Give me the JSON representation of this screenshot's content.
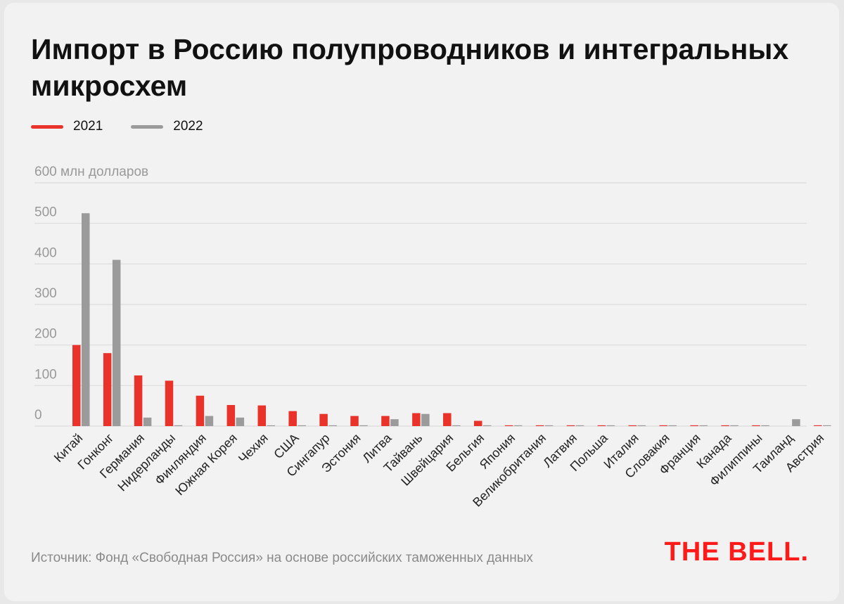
{
  "colors": {
    "series_2021": "#e8322a",
    "series_2022": "#9b9b9b",
    "gridline": "#dcdcdc",
    "tick_label": "#999999",
    "brand": "#ff1a1a"
  },
  "header": {
    "title": "Импорт в Россию полупроводников и интегральных микросхем"
  },
  "legend": [
    {
      "label": "2021",
      "color": "#e8322a"
    },
    {
      "label": "2022",
      "color": "#9b9b9b"
    }
  ],
  "chart_data": {
    "type": "bar",
    "unit_label": "600 млн долларов",
    "ylim": [
      0,
      600
    ],
    "yticks": [
      0,
      100,
      200,
      300,
      400,
      500,
      600
    ],
    "grid": true,
    "legend_position": "top-left",
    "categories": [
      "Китай",
      "Гонконг",
      "Германия",
      "Нидерланды",
      "Финляндия",
      "Южная Корея",
      "Чехия",
      "США",
      "Сингапур",
      "Эстония",
      "Литва",
      "Тайвань",
      "Швейцария",
      "Бельгия",
      "Япония",
      "Великобритания",
      "Латвия",
      "Польша",
      "Италия",
      "Словакия",
      "Франция",
      "Канада",
      "Филиппины",
      "Таиланд",
      "Австрия"
    ],
    "series": [
      {
        "name": "2021",
        "values": [
          200,
          180,
          125,
          112,
          75,
          52,
          51,
          37,
          30,
          25,
          25,
          32,
          32,
          13,
          2,
          2,
          2,
          2,
          2,
          2,
          2,
          2,
          2,
          0,
          2
        ]
      },
      {
        "name": "2022",
        "values": [
          525,
          410,
          21,
          2,
          25,
          21,
          2,
          2,
          2,
          2,
          17,
          30,
          2,
          2,
          2,
          2,
          2,
          2,
          2,
          2,
          2,
          2,
          2,
          17,
          2
        ]
      }
    ]
  },
  "footer": {
    "source": "Источник: Фонд «Свободная Россия» на основе российских таможенных данных",
    "brand": "THE BELL."
  }
}
